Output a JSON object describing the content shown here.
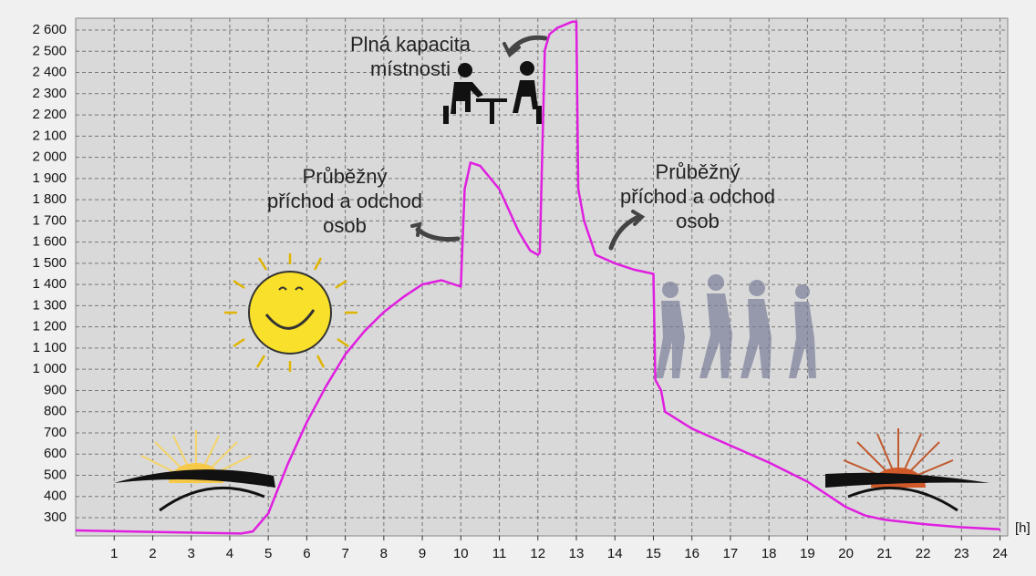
{
  "chart_data": {
    "type": "line",
    "x_label": "[h]",
    "x": [
      0,
      4.3,
      4.6,
      5.0,
      5.5,
      6,
      6.5,
      7,
      7.5,
      8,
      8.5,
      9,
      9.5,
      10.0,
      10.1,
      10.25,
      10.5,
      11,
      11.5,
      11.8,
      12.0,
      12.05,
      12.18,
      12.3,
      12.5,
      12.9,
      13.0,
      13.05,
      13.2,
      13.5,
      14,
      14.5,
      15,
      15.05,
      15.2,
      15.3,
      16,
      17,
      18,
      19,
      20,
      20.5,
      21,
      22,
      23,
      24
    ],
    "series": [
      {
        "color": "#e01ee0",
        "values": [
          240,
          225,
          235,
          320,
          550,
          750,
          920,
          1070,
          1180,
          1270,
          1340,
          1400,
          1420,
          1390,
          1850,
          1975,
          1960,
          1850,
          1650,
          1560,
          1540,
          1550,
          2505,
          2580,
          2610,
          2640,
          2640,
          1850,
          1700,
          1540,
          1500,
          1470,
          1450,
          950,
          900,
          800,
          720,
          640,
          560,
          470,
          350,
          310,
          290,
          270,
          255,
          245
        ]
      }
    ],
    "xlim": [
      0,
      24.2
    ],
    "ylim": [
      214,
      2656
    ],
    "xticks": [
      1,
      2,
      3,
      4,
      5,
      6,
      7,
      8,
      9,
      10,
      11,
      12,
      13,
      14,
      15,
      16,
      17,
      18,
      19,
      20,
      21,
      22,
      23,
      24
    ],
    "yticks": [
      300,
      400,
      500,
      600,
      700,
      800,
      900,
      {
        "value": 1000,
        "label": "1 000"
      },
      {
        "value": 1100,
        "label": "1 100"
      },
      {
        "value": 1200,
        "label": "1 200"
      },
      {
        "value": 1300,
        "label": "1 300"
      },
      {
        "value": 1400,
        "label": "1 400"
      },
      {
        "value": 1500,
        "label": "1 500"
      },
      {
        "value": 1600,
        "label": "1 600"
      },
      {
        "value": 1700,
        "label": "1 700"
      },
      {
        "value": 1800,
        "label": "1 800"
      },
      {
        "value": 1900,
        "label": "1 900"
      },
      {
        "value": 2000,
        "label": "2 000"
      },
      {
        "value": 2100,
        "label": "2 100"
      },
      {
        "value": 2200,
        "label": "2 200"
      },
      {
        "value": 2300,
        "label": "2 300"
      },
      {
        "value": 2400,
        "label": "2 400"
      },
      {
        "value": 2500,
        "label": "2 500"
      },
      {
        "value": 2600,
        "label": "2 600"
      }
    ],
    "grid": true,
    "annotations": [
      {
        "lines": [
          "Plná kapacita",
          "místnosti"
        ]
      },
      {
        "lines": [
          "Průběžný",
          "příchod a odchod",
          "osob"
        ]
      },
      {
        "lines": [
          "Průběžný",
          "příchod a odchod",
          "osob"
        ]
      }
    ]
  }
}
